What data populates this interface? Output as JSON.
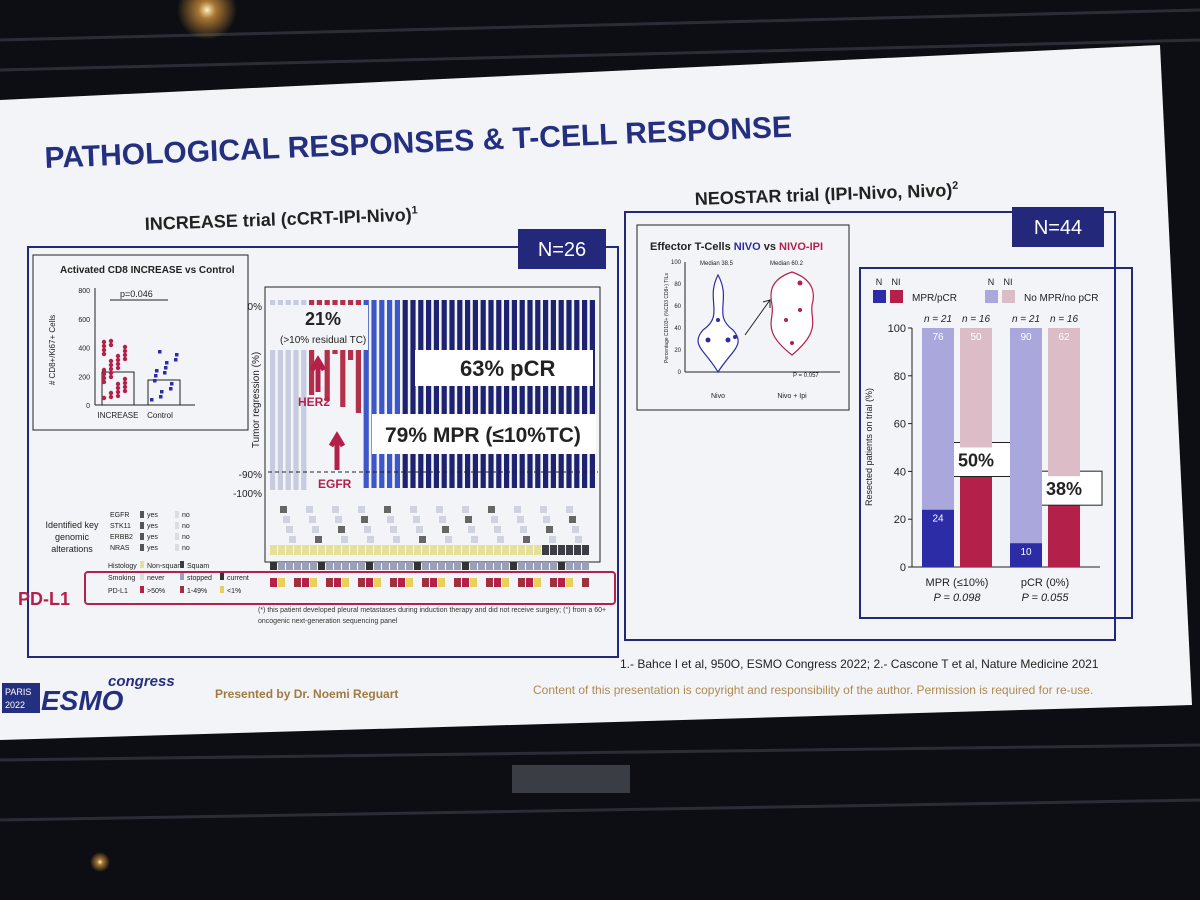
{
  "slide": {
    "title": "PATHOLOGICAL RESPONSES & T-CELL RESPONSE",
    "increase": {
      "heading": "INCREASE trial (cCRT-IPI-Nivo)",
      "ref": "1",
      "n": "N=26",
      "cd8": {
        "title": "Activated CD8 INCREASE vs Control",
        "p": "p=0.046",
        "ylabel": "# CD8+/Ki67+ Cells",
        "yticks": [
          0,
          200,
          400,
          600,
          800
        ],
        "categories": [
          "INCREASE",
          "Control"
        ]
      },
      "waterfall": {
        "ylabel": "Tumor regression (%)",
        "ticks": [
          "0%",
          "-90%",
          "-100%"
        ],
        "residual_pct": "21%",
        "residual_note": "(>10% residual TC)",
        "pcr": "63% pCR",
        "mpr": "79% MPR (≤10%TC)",
        "her2": "HER2",
        "egfr": "EGFR"
      },
      "alterations": {
        "label": [
          "Identified key",
          "genomic",
          "alterations"
        ],
        "genes": [
          "EGFR",
          "STK11",
          "ERBB2",
          "NRAS"
        ],
        "gene_legend": [
          "yes",
          "no"
        ],
        "histology": [
          "Histology",
          "Non-squam",
          "Squam"
        ],
        "smoking": [
          "Smoking",
          "never",
          "stopped",
          "current"
        ],
        "pdl1_row": [
          "PD-L1",
          ">50%",
          "1-49%",
          "<1%"
        ]
      },
      "pdl1": "PD-L1",
      "footnote": [
        "(*) this patient developed pleural metastases during induction therapy and did not receive surgery; (°) from a 60+",
        "oncogenic next-generation sequencing panel"
      ]
    },
    "neostar": {
      "heading": "NEOSTAR trial (IPI-Nivo, Nivo)",
      "ref": "2",
      "n": "N=44",
      "effector": {
        "title": [
          "Effector T-Cells",
          "NIVO",
          "vs",
          "NIVO-IPI"
        ],
        "ylabel": "Percentage CD103+ (%CD3 CD8+) TILs",
        "yticks": [
          0,
          20,
          40,
          60,
          80,
          100
        ],
        "medians": [
          "Median 38.5",
          "Median 60.2"
        ],
        "p": "P = 0.057",
        "categories": [
          "Nivo",
          "Nivo + Ipi"
        ]
      }
    },
    "references": "1.- Bahce I et al, 950O, ESMO Congress 2022; 2.- Cascone T et al, Nature Medicine 2021",
    "logo": {
      "city": "PARIS",
      "year": "2022",
      "brand": "ESMO",
      "word": "congress"
    },
    "presenter": "Presented by Dr. Noemi Reguart",
    "copyright": "Content of this presentation is copyright and responsibility of the author. Permission is required for re-use."
  },
  "chart_data": {
    "type": "bar",
    "stacked": true,
    "ylabel": "Resected patients on trial (%)",
    "ylim": [
      0,
      100
    ],
    "yticks": [
      0,
      20,
      40,
      60,
      80,
      100
    ],
    "legend_groups": [
      "N",
      "NI"
    ],
    "bar_labels": [
      "n = 21",
      "n = 16",
      "n = 21",
      "n = 16"
    ],
    "series": [
      {
        "name": "MPR/pCR",
        "colors": [
          "#2b2ca6",
          "#b3214b",
          "#2b2ca6",
          "#b3214b"
        ],
        "values": [
          24,
          50,
          10,
          38
        ],
        "value_labels": [
          "24",
          "50%",
          "10",
          "38%"
        ]
      },
      {
        "name": "No MPR/no pCR",
        "colors": [
          "#aaa7dc",
          "#dcbcc6",
          "#aaa7dc",
          "#dcbcc6"
        ],
        "values": [
          76,
          50,
          90,
          62
        ]
      }
    ],
    "groups": [
      {
        "label": "MPR (≤10%)",
        "p": "P = 0.098"
      },
      {
        "label": "pCR (0%)",
        "p": "P = 0.055"
      }
    ]
  }
}
